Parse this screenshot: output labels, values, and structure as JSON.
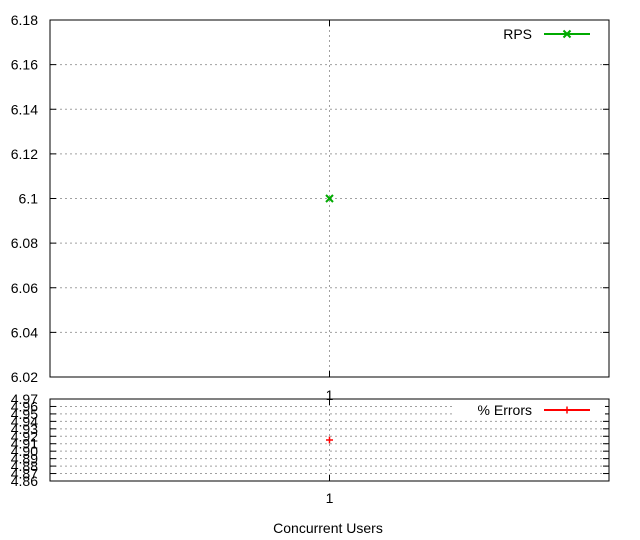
{
  "xlabel": "Concurrent Users",
  "chart_data": [
    {
      "type": "scatter",
      "x": [
        1
      ],
      "series": [
        {
          "name": "RPS",
          "values": [
            6.1
          ],
          "color": "#00aa00",
          "marker": "x"
        }
      ],
      "ylim": [
        6.02,
        6.18
      ],
      "yticks": [
        "6.02",
        "6.04",
        "6.06",
        "6.08",
        "6.1",
        "6.12",
        "6.14",
        "6.16",
        "6.18"
      ],
      "xticks": [
        "1"
      ],
      "grid": true,
      "legend": "top-right"
    },
    {
      "type": "scatter",
      "x": [
        1
      ],
      "series": [
        {
          "name": "% Errors",
          "values": [
            4.915
          ],
          "color": "#ff0000",
          "marker": "+"
        }
      ],
      "ylim": [
        4.86,
        4.97
      ],
      "yticks": [
        "4.86",
        "4.87",
        "4.88",
        "4.89",
        "4.90",
        "4.91",
        "4.92",
        "4.93",
        "4.94",
        "4.95",
        "4.96",
        "4.97"
      ],
      "xticks": [
        "1"
      ],
      "xlabel": "Concurrent Users",
      "grid": true,
      "legend": "top-right"
    }
  ]
}
